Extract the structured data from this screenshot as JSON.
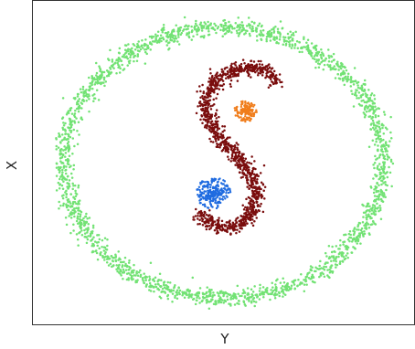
{
  "chart_data": {
    "type": "scatter",
    "title": "",
    "xlabel": "Y",
    "ylabel": "X",
    "xlim": [
      -1.3,
      1.3
    ],
    "ylim": [
      -1.17,
      1.17
    ],
    "grid": false,
    "legend": "none",
    "ticks": "none",
    "series": [
      {
        "shape": "ring",
        "color": "#72e274",
        "point_count": 2200,
        "center": [
          0.0,
          0.0
        ],
        "radius_x": 1.09,
        "radius_y": 0.98,
        "thickness": 0.07
      },
      {
        "shape": "s-curve",
        "color": "#7a0d0d",
        "point_count": 1150,
        "thickness": 0.05,
        "path": [
          [
            0.36,
            0.58
          ],
          [
            0.31,
            0.65
          ],
          [
            0.22,
            0.69
          ],
          [
            0.11,
            0.68
          ],
          [
            0.01,
            0.64
          ],
          [
            -0.07,
            0.57
          ],
          [
            -0.11,
            0.48
          ],
          [
            -0.12,
            0.39
          ],
          [
            -0.1,
            0.3
          ],
          [
            -0.05,
            0.21
          ],
          [
            0.02,
            0.13
          ],
          [
            0.09,
            0.05
          ],
          [
            0.15,
            -0.03
          ],
          [
            0.2,
            -0.12
          ],
          [
            0.22,
            -0.22
          ],
          [
            0.21,
            -0.32
          ],
          [
            0.16,
            -0.41
          ],
          [
            0.09,
            -0.46
          ],
          [
            0.0,
            -0.47
          ],
          [
            -0.09,
            -0.44
          ],
          [
            -0.16,
            -0.37
          ]
        ]
      },
      {
        "shape": "star",
        "color": "#f07d1b",
        "point_count": 140,
        "center": [
          0.15,
          0.37
        ],
        "radius": 0.08
      },
      {
        "shape": "star",
        "color": "#1f6be0",
        "point_count": 240,
        "center": [
          -0.07,
          -0.22
        ],
        "radius": 0.12
      }
    ]
  }
}
